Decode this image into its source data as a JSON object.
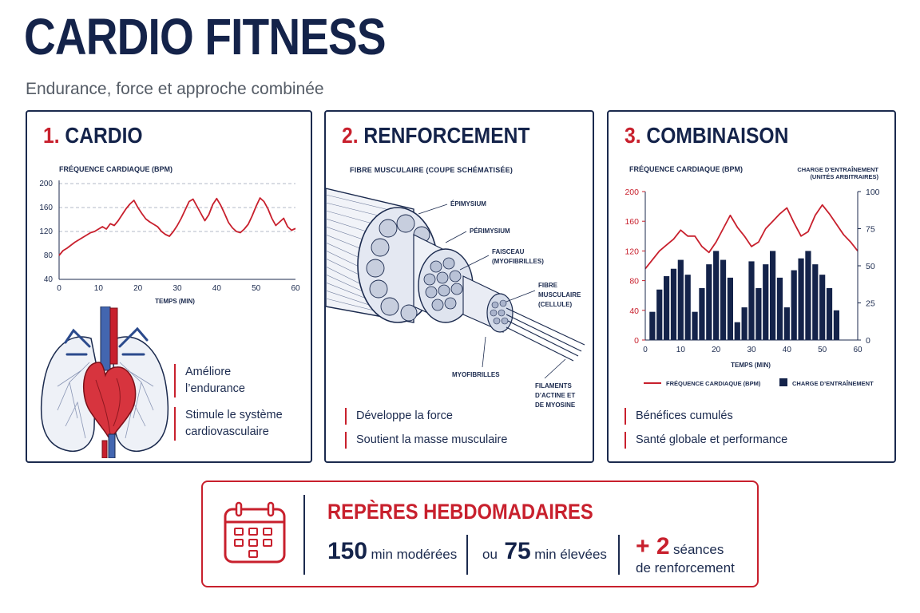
{
  "header": {
    "title": "CARDIO FITNESS",
    "subtitle": "Endurance, force et approche combinée"
  },
  "panel_cardio": {
    "number": "1.",
    "title": "CARDIO",
    "chart_title": "FRÉQUENCE CARDIAQUE (BPM)",
    "bullets": [
      {
        "line1": "Améliore",
        "line2": "l’endurance"
      },
      {
        "line1": "Stimule le système",
        "line2": "cardiovasculaire"
      }
    ]
  },
  "panel_strength": {
    "number": "2.",
    "title": "RENFORCEMENT",
    "diagram_title": "FIBRE MUSCULAIRE (COUPE SCHÉMATISÉE)",
    "labels": {
      "epimysium": "ÉPIMYSIUM",
      "perimysium": "PÉRIMYSIUM",
      "fascicle_1": "FAISCEAU",
      "fascicle_2": "(MYOFIBRILLES)",
      "fiber_1": "FIBRE",
      "fiber_2": "MUSCULAIRE",
      "fiber_3": "(CELLULE)",
      "myofibrils": "MYOFIBRILLES",
      "filaments_1": "FILAMENTS",
      "filaments_2": "D’ACTINE ET",
      "filaments_3": "DE MYOSINE"
    },
    "bullets": [
      "Développe la force",
      "Soutient la masse musculaire"
    ]
  },
  "panel_combo": {
    "number": "3.",
    "title": "COMBINAISON",
    "chart_left_title": "FRÉQUENCE CARDIAQUE (BPM)",
    "chart_right_title_1": "CHARGE D’ENTRAÎNEMENT",
    "chart_right_title_2": "(UNITÉS ARBITRAIRES)",
    "legend_line": "FRÉQUENCE CARDIAQUE (BPM)",
    "legend_bar": "CHARGE D’ENTRAÎNEMENT",
    "bullets": [
      "Bénéfices cumulés",
      "Santé globale et performance"
    ]
  },
  "weekly": {
    "title": "REPÈRES HEBDOMADAIRES",
    "moderate_value": "150",
    "moderate_label": "min modérées",
    "or_label": "ou",
    "vigorous_value": "75",
    "vigorous_label": "min élevées",
    "plus_value": "+ 2",
    "sessions_line1": "séances",
    "sessions_line2": "de renforcement"
  },
  "colors": {
    "navy": "#1b2a4e",
    "red": "#c8202d"
  },
  "chart_data": [
    {
      "type": "line",
      "title": "FRÉQUENCE CARDIAQUE (BPM)",
      "xlabel": "TEMPS (MIN)",
      "ylabel": "",
      "xlim": [
        0,
        60
      ],
      "ylim": [
        40,
        200
      ],
      "xticks": [
        0,
        10,
        20,
        30,
        40,
        50,
        60
      ],
      "yticks": [
        40,
        80,
        120,
        160,
        200
      ],
      "dashed_gridlines_y": [
        120,
        160,
        200
      ],
      "x": [
        0,
        1,
        2,
        3,
        4,
        5,
        6,
        7,
        8,
        9,
        10,
        11,
        12,
        13,
        14,
        15,
        16,
        17,
        18,
        19,
        20,
        21,
        22,
        23,
        24,
        25,
        26,
        27,
        28,
        29,
        30,
        31,
        32,
        33,
        34,
        35,
        36,
        37,
        38,
        39,
        40,
        41,
        42,
        43,
        44,
        45,
        46,
        47,
        48,
        49,
        50,
        51,
        52,
        53,
        54,
        55,
        56,
        57,
        58,
        59,
        60
      ],
      "y": [
        80,
        88,
        92,
        97,
        102,
        106,
        110,
        114,
        118,
        120,
        124,
        128,
        124,
        133,
        130,
        138,
        148,
        158,
        166,
        172,
        160,
        150,
        141,
        136,
        132,
        128,
        120,
        115,
        112,
        120,
        130,
        142,
        156,
        170,
        174,
        162,
        150,
        138,
        148,
        165,
        175,
        164,
        150,
        135,
        126,
        120,
        118,
        124,
        132,
        146,
        162,
        176,
        170,
        158,
        142,
        130,
        136,
        142,
        128,
        122,
        125
      ]
    },
    {
      "type": "bar",
      "title": "COMBINAISON",
      "xlabel": "TEMPS (MIN)",
      "xlim": [
        0,
        60
      ],
      "xticks": [
        0,
        10,
        20,
        30,
        40,
        50,
        60
      ],
      "ylim_left": [
        0,
        200
      ],
      "yticks_left": [
        0,
        40,
        80,
        120,
        160,
        200
      ],
      "ylim_right": [
        0,
        100
      ],
      "yticks_right": [
        0,
        25,
        50,
        75,
        100
      ],
      "legend": "bottom",
      "series": [
        {
          "name": "FRÉQUENCE CARDIAQUE (BPM)",
          "axis": "left",
          "type": "line",
          "x": [
            0,
            2,
            4,
            6,
            8,
            10,
            12,
            14,
            16,
            18,
            20,
            22,
            24,
            26,
            28,
            30,
            32,
            34,
            36,
            38,
            40,
            42,
            44,
            46,
            48,
            50,
            52,
            54,
            56,
            58,
            60
          ],
          "y": [
            96,
            108,
            120,
            128,
            136,
            148,
            140,
            140,
            126,
            118,
            132,
            150,
            168,
            152,
            140,
            126,
            132,
            150,
            160,
            170,
            178,
            158,
            140,
            146,
            168,
            182,
            170,
            156,
            142,
            132,
            120
          ]
        },
        {
          "name": "CHARGE D’ENTRAÎNEMENT",
          "axis": "right",
          "type": "bar",
          "x": [
            2,
            4,
            6,
            8,
            10,
            12,
            14,
            16,
            18,
            20,
            22,
            24,
            26,
            28,
            30,
            32,
            34,
            36,
            38,
            40,
            42,
            44,
            46,
            48,
            50,
            52,
            54,
            56,
            58
          ],
          "y": [
            19,
            34,
            43,
            48,
            54,
            44,
            19,
            35,
            51,
            60,
            54,
            42,
            12,
            22,
            53,
            35,
            51,
            60,
            42,
            22,
            47,
            55,
            60,
            51,
            44,
            35,
            20,
            0,
            0
          ]
        }
      ]
    }
  ]
}
